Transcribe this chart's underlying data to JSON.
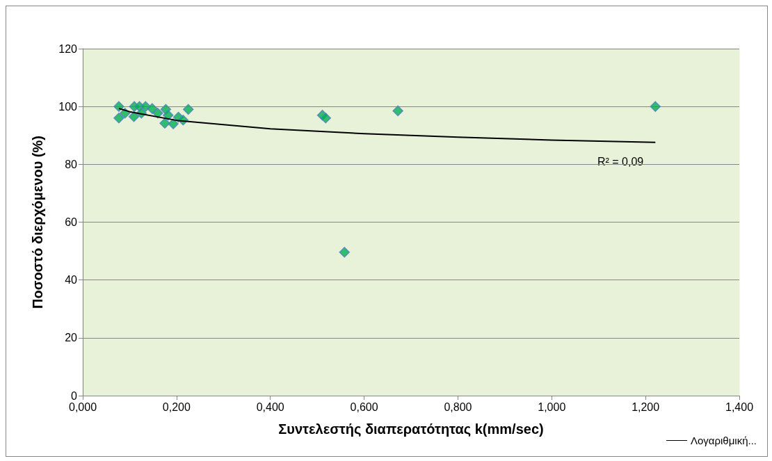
{
  "chart_data": {
    "type": "scatter",
    "xlabel": "Συντελεστής διαπερατότητας k(mm/sec)",
    "ylabel": "Ποσοστό διερχόμενου (%)",
    "xlim": [
      0,
      1.4
    ],
    "xticks": [
      {
        "value": 0,
        "label": "0,000"
      },
      {
        "value": 0.2,
        "label": "0,200"
      },
      {
        "value": 0.4,
        "label": "0,400"
      },
      {
        "value": 0.6,
        "label": "0,600"
      },
      {
        "value": 0.8,
        "label": "0,800"
      },
      {
        "value": 1.0,
        "label": "1,000"
      },
      {
        "value": 1.2,
        "label": "1,200"
      },
      {
        "value": 1.4,
        "label": "1,400"
      }
    ],
    "ylim": [
      0,
      120
    ],
    "yticks": [
      0,
      20,
      40,
      60,
      80,
      100,
      120
    ],
    "grid": "y",
    "legend": "bottom right",
    "marker": "diamond",
    "annotations": [
      "R² = 0,09"
    ],
    "series": [
      {
        "color": "#00b050",
        "x": [
          0.077,
          0.077,
          0.09,
          0.11,
          0.109,
          0.121,
          0.125,
          0.134,
          0.148,
          0.16,
          0.177,
          0.175,
          0.182,
          0.193,
          0.204,
          0.214,
          0.225,
          0.511,
          0.518,
          0.558,
          0.672,
          1.221
        ],
        "values": [
          100,
          96,
          97.7,
          100,
          96.5,
          100,
          97.7,
          100,
          99.3,
          97.7,
          99,
          94.2,
          97,
          94,
          96.3,
          95.3,
          99,
          97,
          96,
          49.6,
          98.5,
          100
        ]
      },
      {
        "type": "line",
        "name": "Λογαριθμική...",
        "color": "#000000",
        "marker": "none",
        "line_style": "solid",
        "x": [
          0.077,
          0.1,
          0.2,
          0.4,
          0.6,
          0.8,
          1.0,
          1.221
        ],
        "values": [
          99.3,
          98.2,
          95.2,
          92.3,
          90.6,
          89.4,
          88.4,
          87.6
        ]
      }
    ]
  }
}
